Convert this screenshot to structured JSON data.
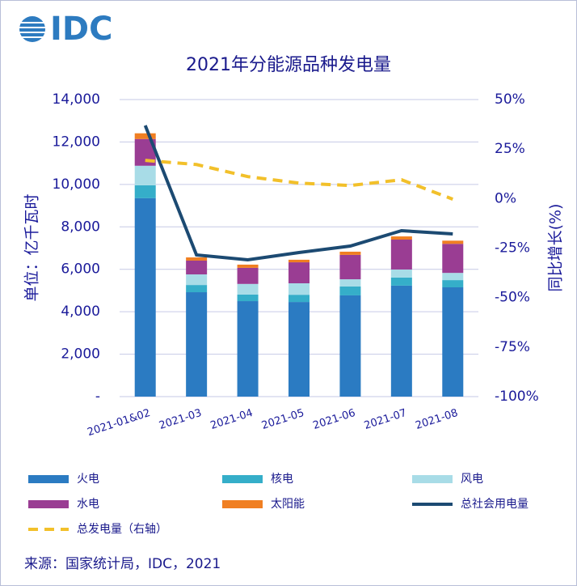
{
  "logo": "IDC",
  "source": "来源：国家统计局，IDC，2021",
  "chart_data": {
    "type": "bar",
    "title": "2021年分能源品种发电量",
    "y_label": "单位：亿千瓦时",
    "y2_label": "同比增长(%)",
    "categories": [
      "2021-01&02",
      "2021-03",
      "2021-04",
      "2021-05",
      "2021-06",
      "2021-07",
      "2021-08"
    ],
    "series": [
      {
        "name": "火电",
        "type": "bar",
        "color": "#2b7bc2",
        "values": [
          9350,
          4920,
          4500,
          4460,
          4770,
          5230,
          5150
        ]
      },
      {
        "name": "核电",
        "type": "bar",
        "color": "#35aec9",
        "values": [
          610,
          340,
          310,
          340,
          420,
          380,
          340
        ]
      },
      {
        "name": "风电",
        "type": "bar",
        "color": "#a8dce7",
        "values": [
          920,
          500,
          500,
          540,
          340,
          380,
          340
        ]
      },
      {
        "name": "水电",
        "type": "bar",
        "color": "#9a3d93",
        "values": [
          1260,
          650,
          760,
          990,
          1150,
          1410,
          1370
        ]
      },
      {
        "name": "太阳能",
        "type": "bar",
        "color": "#f07f22",
        "values": [
          270,
          150,
          150,
          120,
          150,
          150,
          150
        ]
      },
      {
        "name": "总社会用电量",
        "type": "line",
        "color": "#1c4a72",
        "values": [
          12780,
          6676,
          6447,
          6790,
          7095,
          7820,
          7668
        ]
      },
      {
        "name": "总发电量（右轴）",
        "type": "line",
        "dashed": true,
        "axis": "y2",
        "color": "#f2c02a",
        "values": [
          19.3,
          17.2,
          11.1,
          7.8,
          6.6,
          9.5,
          -0.3
        ]
      }
    ],
    "ylim": [
      0,
      14000
    ],
    "yticks": [
      {
        "value": 0,
        "label": "-"
      },
      {
        "value": 2000,
        "label": "2,000"
      },
      {
        "value": 4000,
        "label": "4,000"
      },
      {
        "value": 6000,
        "label": "6,000"
      },
      {
        "value": 8000,
        "label": "8,000"
      },
      {
        "value": 10000,
        "label": "10,000"
      },
      {
        "value": 12000,
        "label": "12,000"
      },
      {
        "value": 14000,
        "label": "14,000"
      }
    ],
    "y2lim": [
      -100,
      50
    ],
    "y2ticks": [
      {
        "value": -100,
        "label": "-100%"
      },
      {
        "value": -75,
        "label": "-75%"
      },
      {
        "value": -50,
        "label": "-50%"
      },
      {
        "value": -25,
        "label": "-25%"
      },
      {
        "value": 0,
        "label": "0%"
      },
      {
        "value": 25,
        "label": "25%"
      },
      {
        "value": 50,
        "label": "50%"
      }
    ],
    "grid": true
  }
}
